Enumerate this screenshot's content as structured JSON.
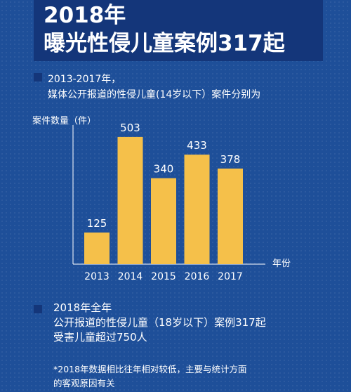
{
  "header": {
    "title_line1": "2018年",
    "title_line2": "曝光性侵儿童案例317起"
  },
  "intro": {
    "line1": "2013-2017年，",
    "line2": "媒体公开报道的性侵儿童(14岁以下）案件分别为"
  },
  "summary": {
    "line1": "2018年全年",
    "line2": "公开报道的性侵儿童（18岁以下）案例317起",
    "line3": "受害儿童超过750人"
  },
  "footnote": {
    "line1": "*2018年数据相比往年相对较低，主要与统计方面",
    "line2": "的客观原因有关"
  },
  "colors": {
    "background": "#1e4f99",
    "header": "#14367a",
    "bar": "#f5c04a",
    "text": "#ffffff"
  },
  "chart_data": {
    "type": "bar",
    "categories": [
      "2013",
      "2014",
      "2015",
      "2016",
      "2017"
    ],
    "values": [
      125,
      503,
      340,
      433,
      378
    ],
    "ylabel": "案件数量（件）",
    "xlabel": "年份",
    "ylim": [
      0,
      550
    ],
    "grid": false,
    "legend": "none"
  }
}
